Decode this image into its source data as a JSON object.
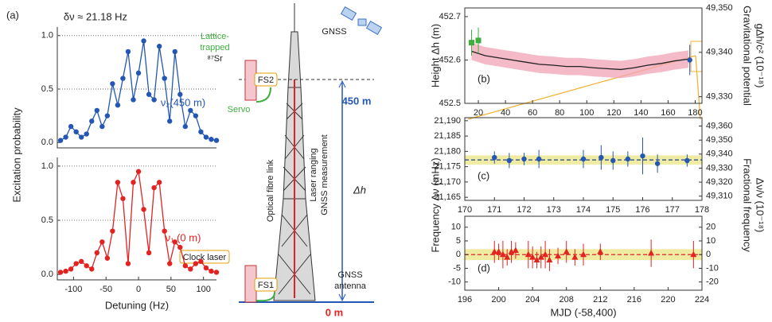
{
  "chart_data": [
    {
      "type": "line",
      "panel": "(a)",
      "annotation": "δν ≈ 21.18 Hz",
      "ylabel": "Excitation probability",
      "grid": true,
      "x": [
        -120,
        -112,
        -104,
        -96,
        -88,
        -80,
        -72,
        -64,
        -56,
        -48,
        -40,
        -32,
        -24,
        -16,
        -8,
        0,
        8,
        16,
        24,
        32,
        40,
        48,
        56,
        64,
        72,
        80,
        88,
        96,
        104,
        112,
        120
      ],
      "series": [
        {
          "name": "ν₂(450 m)",
          "color": "#2456b4",
          "marker": "circle",
          "values": [
            0.02,
            0.05,
            0.15,
            0.1,
            0.05,
            0.08,
            0.2,
            0.3,
            0.15,
            0.25,
            0.55,
            0.35,
            0.6,
            0.85,
            0.4,
            0.65,
            0.95,
            0.45,
            0.4,
            0.9,
            0.6,
            0.2,
            0.85,
            0.45,
            0.15,
            0.3,
            0.25,
            0.1,
            0.05,
            0.03,
            0.02
          ]
        }
      ],
      "xlim": [
        -125,
        120
      ],
      "ylim": [
        -0.05,
        1.08
      ],
      "yticks": [
        {
          "value": 0,
          "label": "0.0"
        },
        0.5,
        {
          "value": 1,
          "label": "1.0"
        }
      ]
    },
    {
      "type": "line",
      "xlabel": "Detuning (Hz)",
      "grid": true,
      "x": [
        -120,
        -112,
        -104,
        -96,
        -88,
        -80,
        -72,
        -64,
        -56,
        -48,
        -40,
        -32,
        -24,
        -16,
        -8,
        0,
        8,
        16,
        24,
        32,
        40,
        48,
        56,
        64,
        72,
        80,
        88,
        96,
        104,
        112,
        120
      ],
      "series": [
        {
          "name": "ν₁ (0 m)",
          "color": "#e32222",
          "marker": "circle",
          "values": [
            0.02,
            0.03,
            0.05,
            0.1,
            0.12,
            0.08,
            0.05,
            0.2,
            0.3,
            0.15,
            0.4,
            0.85,
            0.7,
            0.1,
            0.85,
            0.95,
            0.6,
            0.2,
            0.8,
            0.85,
            0.4,
            0.1,
            0.3,
            0.25,
            0.08,
            0.05,
            0.1,
            0.12,
            0.06,
            0.03,
            0.02
          ]
        }
      ],
      "xlim": [
        -125,
        120
      ],
      "xticks": [
        -100,
        -50,
        0,
        50,
        100
      ],
      "ylim": [
        -0.05,
        1.08
      ],
      "yticks": [
        {
          "value": 0,
          "label": "0.0"
        },
        0.5,
        {
          "value": 1,
          "label": "1.0"
        }
      ]
    },
    {
      "type": "scatter",
      "panel": "(b)",
      "ylabel": "Height Δh (m)",
      "y2label": [
        "Gravitational potential",
        "gΔh/c² (10⁻¹⁸)"
      ],
      "series": [
        {
          "color": "#222222",
          "band_color": "#f2a3b5",
          "marker": "none",
          "x": [
            15,
            25,
            35,
            45,
            55,
            65,
            75,
            85,
            95,
            105,
            115,
            125,
            135,
            145,
            155,
            165,
            175
          ],
          "values": [
            452.62,
            452.61,
            452.605,
            452.6,
            452.595,
            452.59,
            452.588,
            452.585,
            452.585,
            452.582,
            452.58,
            452.578,
            452.582,
            452.588,
            452.592,
            452.598,
            452.602
          ],
          "errors": [
            0.02,
            0.02,
            0.02,
            0.02,
            0.02,
            0.02,
            0.02,
            0.02,
            0.02,
            0.02,
            0.02,
            0.02,
            0.02,
            0.02,
            0.02,
            0.02,
            0.02
          ]
        },
        {
          "color": "#3fae3f",
          "marker": "square",
          "x": [
            15,
            20
          ],
          "values": [
            452.64,
            452.645
          ],
          "errors": [
            0.03,
            0.03
          ]
        },
        {
          "color": "#2456b4",
          "marker": "circle",
          "x": [
            176
          ],
          "values": [
            452.6
          ],
          "errors": [
            0.035
          ]
        }
      ],
      "xlim": [
        10,
        185
      ],
      "xticks": [
        20,
        40,
        60,
        80,
        100,
        120,
        140,
        160,
        180
      ],
      "ylim": [
        452.5,
        452.72
      ],
      "yticks": [
        452.5,
        452.6,
        452.7
      ],
      "y2lim": [
        49328.5,
        49350
      ],
      "y2ticks": [
        {
          "value": 49330,
          "label": "49,330"
        },
        {
          "value": 49340,
          "label": "49,340"
        },
        {
          "value": 49350,
          "label": "49,350"
        }
      ]
    },
    {
      "type": "scatter",
      "panel": "(c)",
      "ylabel": "Frequency Δν (mHz)",
      "y2label": [
        "Fractional frequency",
        "Δν/ν (10⁻¹⁸)"
      ],
      "mean": 21177.2,
      "band": 1.5,
      "mean_color": "#1b3f8f",
      "band_color": "#e9e27a",
      "series": [
        {
          "color": "#2456b4",
          "marker": "circle",
          "x": [
            171,
            171.5,
            172,
            172.5,
            174,
            174.6,
            175,
            175.5,
            176,
            176.5,
            177.5
          ],
          "values": [
            21178,
            21177,
            21177.5,
            21177.5,
            21177.5,
            21178,
            21177,
            21177.5,
            21178.5,
            21176,
            21177
          ],
          "errors": [
            2,
            2.5,
            2,
            3,
            3,
            4,
            3,
            2.5,
            6,
            3,
            2
          ]
        }
      ],
      "xlim": [
        170,
        178
      ],
      "xticks": [
        170,
        171,
        172,
        173,
        174,
        175,
        176,
        177,
        178
      ],
      "ylim": [
        21164,
        21191
      ],
      "yticks": [
        {
          "value": 21165,
          "label": "21,165"
        },
        {
          "value": 21170,
          "label": "21,170"
        },
        {
          "value": 21175,
          "label": "21,175"
        },
        {
          "value": 21180,
          "label": "21,180"
        },
        {
          "value": 21185,
          "label": "21,185"
        },
        {
          "value": 21190,
          "label": "21,190"
        }
      ],
      "y2lim": [
        49307,
        49366
      ],
      "y2ticks": [
        {
          "value": 49310,
          "label": "49,310"
        },
        {
          "value": 49320,
          "label": "49,320"
        },
        {
          "value": 49330,
          "label": "49,330"
        },
        {
          "value": 49340,
          "label": "49,340"
        },
        {
          "value": 49350,
          "label": "49,350"
        },
        {
          "value": 49360,
          "label": "49,360"
        }
      ]
    },
    {
      "type": "scatter",
      "panel": "(d)",
      "xlabel": "MJD (-58,400)",
      "mean": 0,
      "band": 2,
      "mean_color": "#e32222",
      "band_color": "#e9e27a",
      "series": [
        {
          "color": "#e32222",
          "marker": "triangle",
          "x": [
            199.5,
            200,
            200.5,
            201,
            201.5,
            202,
            203.5,
            204,
            204.5,
            205,
            205.5,
            206,
            207,
            208,
            209,
            210,
            212,
            218,
            223
          ],
          "values": [
            1,
            1,
            0,
            -1,
            1,
            1.5,
            0,
            -1,
            -2,
            -1,
            0,
            -2,
            -0.5,
            1,
            -1,
            0,
            1,
            0.5,
            0
          ],
          "errors": [
            4,
            3,
            5,
            3,
            4,
            3,
            5,
            4,
            3,
            4,
            5,
            4,
            3,
            4,
            3,
            4,
            3,
            5,
            5
          ]
        }
      ],
      "xlim": [
        196,
        224
      ],
      "xticks": [
        196,
        200,
        204,
        208,
        212,
        216,
        220,
        224
      ],
      "ylim": [
        -13,
        14
      ],
      "yticks": [
        -10,
        -5,
        0,
        5,
        10
      ],
      "y2lim": [
        -26,
        28
      ],
      "y2ticks": [
        -20,
        -10,
        0,
        10,
        20
      ]
    }
  ],
  "diagram": {
    "lattice": [
      "Lattice-",
      "trapped",
      "⁸⁷Sr"
    ],
    "fs2": "FS2",
    "servo": "Servo",
    "clock_laser": "Clock laser",
    "fs1": "FS1",
    "fibre": "Optical fibre link",
    "ranging": "Laser ranging",
    "gnss_measurement": "GNSS measurement",
    "gnss": "GNSS",
    "antenna": [
      "GNSS",
      "antenna"
    ],
    "top_height": "450 m",
    "delta_h": "Δh",
    "ground": "0 m"
  }
}
